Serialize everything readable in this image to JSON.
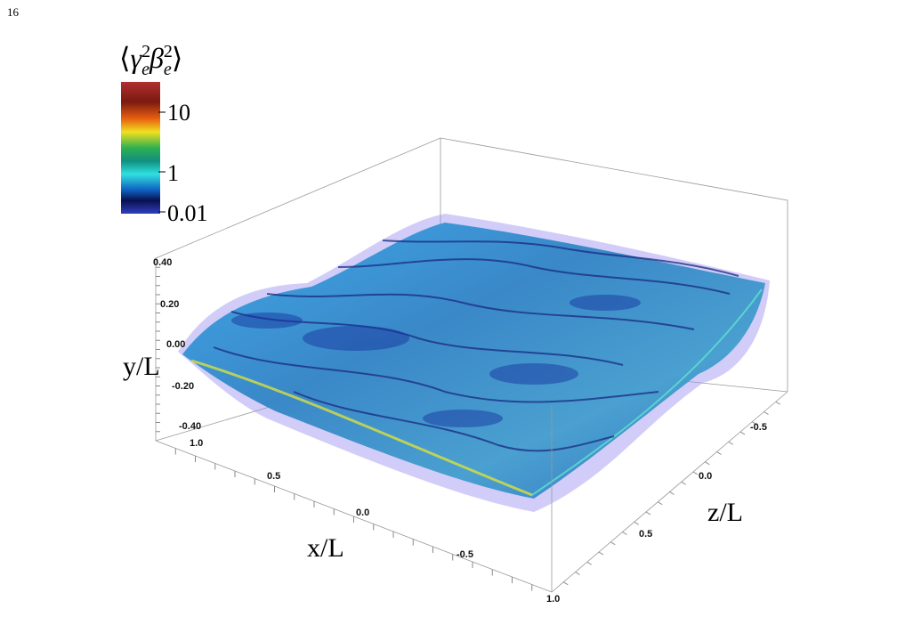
{
  "page_number": "16",
  "colorbar": {
    "title": {
      "open": "⟨",
      "symbols": [
        {
          "base": "γ",
          "sub": "e",
          "sup": "2"
        },
        {
          "base": "β",
          "sub": "e",
          "sup": "2"
        }
      ],
      "close": "⟩"
    },
    "ticks": [
      "10",
      "1",
      "0.01"
    ]
  },
  "axes": {
    "y": {
      "label": "y/L",
      "ticks": [
        "0.40",
        "0.20",
        "0.00",
        "-0.20",
        "-0.40"
      ]
    },
    "x": {
      "label": "x/L",
      "ticks": [
        "1.0",
        "0.5",
        "0.0",
        "-0.5"
      ]
    },
    "z": {
      "label": "z/L",
      "ticks": [
        "-0.5",
        "0.0",
        "0.5",
        "1.0"
      ]
    }
  }
}
